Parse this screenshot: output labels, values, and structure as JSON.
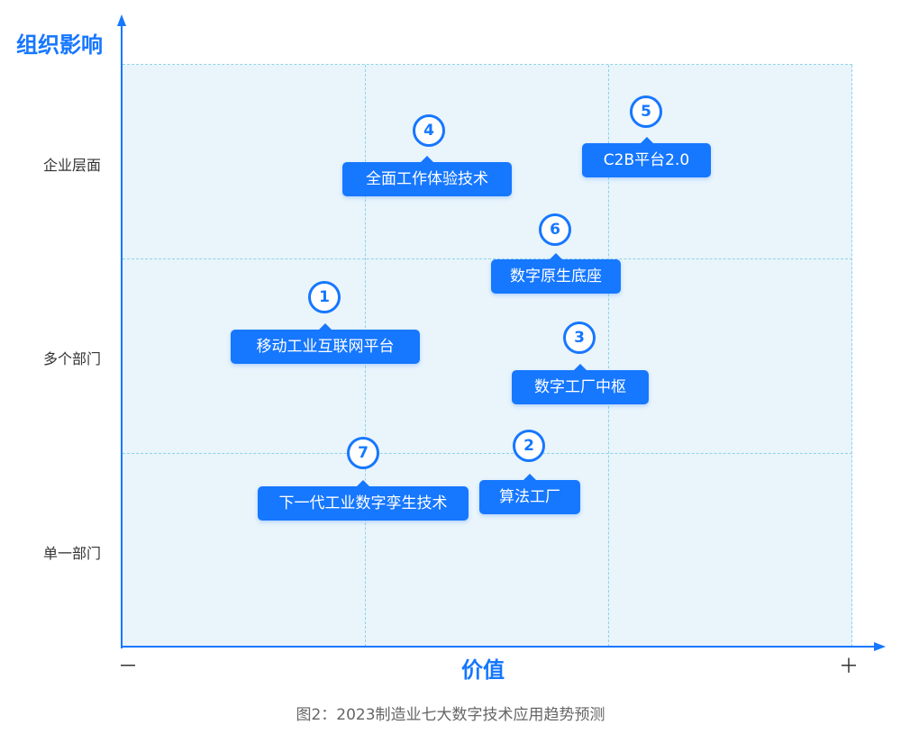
{
  "y_axis": {
    "title": "组织影响",
    "ticks": [
      "企业层面",
      "多个部门",
      "单一部门"
    ]
  },
  "x_axis": {
    "title": "价值",
    "min_label": "－",
    "max_label": "＋"
  },
  "items": [
    {
      "num": "4",
      "label": "全面工作体验技术"
    },
    {
      "num": "5",
      "label": "C2B平台2.0"
    },
    {
      "num": "6",
      "label": "数字原生底座"
    },
    {
      "num": "1",
      "label": "移动工业互联网平台"
    },
    {
      "num": "3",
      "label": "数字工厂中枢"
    },
    {
      "num": "7",
      "label": "下一代工业数字孪生技术"
    },
    {
      "num": "2",
      "label": "算法工厂"
    }
  ],
  "caption": "图2：2023制造业七大数字技术应用趋势预测",
  "colors": {
    "accent": "#1677ff",
    "plot_bg": "#e9f4fb",
    "grid": "#8ed4e6"
  }
}
